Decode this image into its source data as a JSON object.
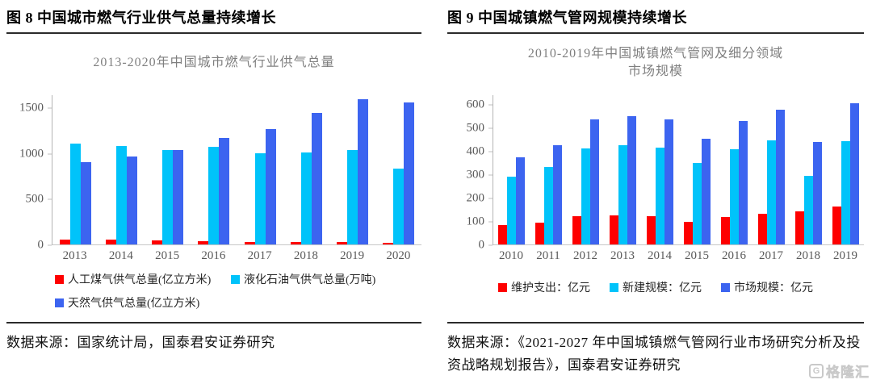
{
  "panels": [
    {
      "header": "图 8 中国城市燃气行业供气总量持续增长",
      "title_display": "2013-2020年中国城市燃气行业供气总量",
      "source": "数据来源：国家统计局，国泰君安证券研究"
    },
    {
      "header": "图 9 中国城镇燃气管网规模持续增长",
      "title_display": "2010-2019年中国城镇燃气管网及细分领域\n市场规模",
      "source": "数据来源：《2021-2027 年中国城镇燃气管网行业市场研究分析及投资战略规划报告》，国泰君安证券研究"
    }
  ],
  "watermark": {
    "logo_letter": "G",
    "text": "格隆汇"
  },
  "chart_data": [
    {
      "type": "bar",
      "title": "2013-2020年中国城市燃气行业供气总量",
      "categories": [
        "2013",
        "2014",
        "2015",
        "2016",
        "2017",
        "2018",
        "2019",
        "2020"
      ],
      "series": [
        {
          "name": "人工煤气供气总量(亿立方米)",
          "color": "#fe0000",
          "values": [
            55,
            50,
            45,
            40,
            30,
            26,
            23,
            17
          ]
        },
        {
          "name": "液化石油气供气总量(万吨)",
          "color": "#00c3fa",
          "values": [
            1110,
            1080,
            1035,
            1075,
            1000,
            1015,
            1040,
            830
          ]
        },
        {
          "name": "天然气供气总量(亿立方米)",
          "color": "#3c64f0",
          "values": [
            900,
            965,
            1040,
            1170,
            1265,
            1445,
            1600,
            1560
          ]
        }
      ],
      "xlabel": "",
      "ylabel": "",
      "ylim": [
        0,
        1640
      ],
      "yticks": [
        0,
        500,
        1000,
        1500
      ],
      "grid": false,
      "legend_position": "bottom"
    },
    {
      "type": "bar",
      "title": "2010-2019年中国城镇燃气管网及细分领域市场规模",
      "categories": [
        "2010",
        "2011",
        "2012",
        "2013",
        "2014",
        "2015",
        "2016",
        "2017",
        "2018",
        "2019"
      ],
      "series": [
        {
          "name": "维护支出：亿元",
          "color": "#fe0000",
          "values": [
            83,
            95,
            120,
            123,
            120,
            98,
            119,
            130,
            142,
            162
          ]
        },
        {
          "name": "新建规模：亿元",
          "color": "#00c3fa",
          "values": [
            290,
            332,
            413,
            425,
            415,
            348,
            408,
            445,
            293,
            443
          ]
        },
        {
          "name": "市场规模：亿元",
          "color": "#3c64f0",
          "values": [
            373,
            425,
            535,
            550,
            537,
            452,
            528,
            577,
            440,
            607
          ]
        }
      ],
      "xlabel": "",
      "ylabel": "",
      "ylim": [
        0,
        640
      ],
      "yticks": [
        0,
        100,
        200,
        300,
        400,
        500,
        600
      ],
      "grid": false,
      "legend_position": "bottom"
    }
  ]
}
